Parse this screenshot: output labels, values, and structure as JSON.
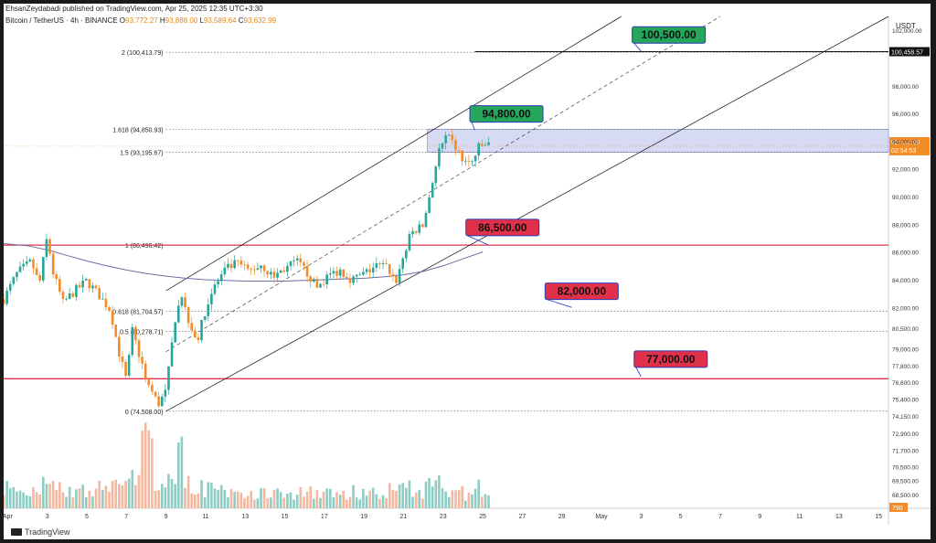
{
  "publisher": "EhsanZeydabadi published on TradingView.com, Apr 25, 2025 12:35 UTC+3:30",
  "symbol_line": "Bitcoin / TetherUS · 4h · BINANCE",
  "ohlc": {
    "o_label": "O",
    "o": "93,772.27",
    "h_label": "H",
    "h": "93,888.00",
    "l_label": "L",
    "l": "93,589.64",
    "c_label": "C",
    "c": "93,632.99"
  },
  "currency": "USDT",
  "brand": "TradingView",
  "current_price_label": "93,632.99",
  "countdown_label": "02:54:53",
  "volume_badge": "790",
  "colors": {
    "up": "#26a69a",
    "down": "#f28c28",
    "upvol": "#8ecdc4",
    "downvol": "#f3b89f",
    "red": "#e0304a",
    "green": "#26a65b",
    "zone": "#c9ceef"
  },
  "chart_data": {
    "type": "candlestick",
    "interval": "4h",
    "ylim": [
      67500,
      103000
    ],
    "y_ticks": [
      "102,000.00",
      "100,458.57",
      "98,000.00",
      "96,000.00",
      "94,000.00",
      "92,000.00",
      "90,000.00",
      "88,000.00",
      "86,000.00",
      "84,000.00",
      "82,000.00",
      "80,500.00",
      "79,000.00",
      "77,800.00",
      "76,600.00",
      "75,400.00",
      "74,150.00",
      "72,900.00",
      "71,700.00",
      "70,500.00",
      "69,500.00",
      "68,500.00"
    ],
    "y_tick_values": [
      102000,
      100458.57,
      98000,
      96000,
      94000,
      92000,
      90000,
      88000,
      86000,
      84000,
      82000,
      80500,
      79000,
      77800,
      76600,
      75400,
      74150,
      72900,
      71700,
      70500,
      69500,
      68500
    ],
    "x_ticks": [
      "Apr",
      "3",
      "5",
      "7",
      "9",
      "11",
      "13",
      "15",
      "17",
      "19",
      "21",
      "23",
      "25",
      "27",
      "29",
      "May",
      "3",
      "5",
      "7",
      "9",
      "11",
      "13",
      "15"
    ],
    "x_tick_days": [
      1,
      3,
      5,
      7,
      9,
      11,
      13,
      15,
      17,
      19,
      21,
      23,
      25,
      27,
      29,
      31,
      33,
      35,
      37,
      39,
      41,
      43,
      45
    ],
    "x_day_range": [
      0.8,
      45.5
    ],
    "fib_levels": [
      {
        "label": "2 (100,413.79)",
        "value": 100413.79
      },
      {
        "label": "1.618 (94,850.93)",
        "value": 94850.93
      },
      {
        "label": "1.5 (93,195.67)",
        "value": 93195.67
      },
      {
        "label": "1 (86,496.42)",
        "value": 86496.42
      },
      {
        "label": "0.618 (81,704.57)",
        "value": 81704.57
      },
      {
        "label": "0.5 (80,278.71)",
        "value": 80278.71
      },
      {
        "label": "0 (74,508.00)",
        "value": 74508
      }
    ],
    "horizontal_lines": [
      {
        "value": 100458.57,
        "color": "#111111",
        "label": "100,458.57"
      },
      {
        "value": 86496.42,
        "color": "#e0304a"
      },
      {
        "value": 76850,
        "color": "#e0304a"
      }
    ],
    "zone": {
      "from_day": 22.2,
      "to_day": 45.5,
      "low": 93195.67,
      "high": 94850.93
    },
    "channel": {
      "upper": [
        [
          9.0,
          83200
        ],
        [
          32.0,
          103000
        ]
      ],
      "middle": [
        [
          9.0,
          78800
        ],
        [
          37.0,
          103000
        ]
      ],
      "lower": [
        [
          9.0,
          74508
        ],
        [
          45.5,
          103000
        ]
      ]
    },
    "targets": [
      {
        "label": "100,500.00",
        "value": 100500,
        "color": "#26a65b",
        "box_day": 34.4,
        "box_value": 101600,
        "tail_day": 33.0
      },
      {
        "label": "94,800.00",
        "value": 94800,
        "color": "#26a65b",
        "box_day": 26.2,
        "box_value": 95900,
        "tail_day": 24.6
      },
      {
        "label": "86,500.00",
        "value": 86500,
        "color": "#e0304a",
        "box_day": 26.0,
        "box_value": 87700,
        "tail_day": 25.3
      },
      {
        "label": "82,000.00",
        "value": 82000,
        "color": "#e0304a",
        "box_day": 30.0,
        "box_value": 83100,
        "tail_day": 29.5
      },
      {
        "label": "77,000.00",
        "value": 77000,
        "color": "#e0304a",
        "box_day": 34.5,
        "box_value": 78200,
        "tail_day": 33.0
      }
    ],
    "moving_average": [
      [
        0.8,
        86600
      ],
      [
        2,
        86450
      ],
      [
        3,
        86150
      ],
      [
        4,
        85750
      ],
      [
        5,
        85350
      ],
      [
        6,
        85000
      ],
      [
        7,
        84700
      ],
      [
        8,
        84450
      ],
      [
        9,
        84250
      ],
      [
        10,
        84100
      ],
      [
        11,
        84000
      ],
      [
        12,
        83950
      ],
      [
        13,
        83900
      ],
      [
        14,
        83900
      ],
      [
        15,
        83900
      ],
      [
        16,
        83950
      ],
      [
        17,
        84000
      ],
      [
        18,
        84050
      ],
      [
        19,
        84100
      ],
      [
        20,
        84200
      ],
      [
        21,
        84350
      ],
      [
        22,
        84600
      ],
      [
        23,
        85000
      ],
      [
        24,
        85500
      ],
      [
        25,
        86000
      ]
    ],
    "candle_path": [
      [
        0.8,
        82600
      ],
      [
        1.5,
        84500
      ],
      [
        2.2,
        85300
      ],
      [
        2.6,
        83600
      ],
      [
        3.0,
        87100
      ],
      [
        3.3,
        84500
      ],
      [
        3.8,
        82300
      ],
      [
        4.4,
        83200
      ],
      [
        5.0,
        83900
      ],
      [
        5.6,
        82900
      ],
      [
        6.2,
        81800
      ],
      [
        6.6,
        78900
      ],
      [
        7.0,
        76700
      ],
      [
        7.3,
        80300
      ],
      [
        7.7,
        78300
      ],
      [
        8.1,
        76500
      ],
      [
        8.6,
        75000
      ],
      [
        9.0,
        75900
      ],
      [
        9.5,
        81600
      ],
      [
        9.8,
        82600
      ],
      [
        10.2,
        80900
      ],
      [
        10.6,
        79600
      ],
      [
        11.0,
        81900
      ],
      [
        11.4,
        83400
      ],
      [
        12.0,
        84700
      ],
      [
        12.6,
        85200
      ],
      [
        13.2,
        84600
      ],
      [
        13.8,
        85100
      ],
      [
        14.4,
        84200
      ],
      [
        15.0,
        84800
      ],
      [
        15.6,
        85300
      ],
      [
        16.2,
        84400
      ],
      [
        16.6,
        83400
      ],
      [
        17.2,
        84300
      ],
      [
        17.8,
        84700
      ],
      [
        18.4,
        84000
      ],
      [
        19.0,
        84400
      ],
      [
        19.6,
        85000
      ],
      [
        20.2,
        84900
      ],
      [
        20.6,
        83800
      ],
      [
        21.0,
        85700
      ],
      [
        21.4,
        87400
      ],
      [
        22.0,
        87900
      ],
      [
        22.4,
        90700
      ],
      [
        22.8,
        93300
      ],
      [
        23.2,
        94300
      ],
      [
        23.6,
        93600
      ],
      [
        24.0,
        92600
      ],
      [
        24.4,
        92300
      ],
      [
        24.8,
        93500
      ],
      [
        25.2,
        93800
      ],
      [
        25.4,
        93633
      ]
    ],
    "volume_ylim": [
      0,
      1500
    ],
    "last_close": 93632.99
  }
}
